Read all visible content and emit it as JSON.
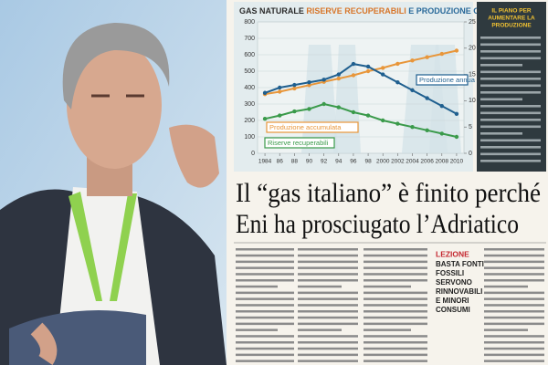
{
  "chart_data": {
    "type": "line",
    "title_parts": [
      "GAS NATURALE",
      "RISERVE RECUPERABILI",
      "E PRODUZIONE CUMULATA"
    ],
    "x": [
      1984,
      1986,
      1988,
      1990,
      1992,
      1994,
      1996,
      1998,
      2000,
      2002,
      2004,
      2006,
      2008,
      2010
    ],
    "xlim": [
      1983,
      2011
    ],
    "xticks": [
      1984,
      {
        "value": 1986,
        "label": "86"
      },
      {
        "value": 1988,
        "label": "88"
      },
      {
        "value": 1990,
        "label": "90"
      },
      {
        "value": 1992,
        "label": "92"
      },
      {
        "value": 1994,
        "label": "94"
      },
      {
        "value": 1996,
        "label": "96"
      },
      {
        "value": 1998,
        "label": "98"
      },
      2000,
      2002,
      2004,
      2006,
      2008,
      2010
    ],
    "ylim": [
      0,
      800
    ],
    "yticks": [
      0,
      100,
      200,
      300,
      400,
      500,
      600,
      700,
      800
    ],
    "y2lim": [
      0,
      25
    ],
    "y2ticks": [
      0,
      5,
      10,
      15,
      20,
      25
    ],
    "grid": true,
    "series": [
      {
        "name": "Produzione accumulata",
        "color": "#e8963a",
        "values": [
          360,
          375,
          395,
          415,
          435,
          455,
          475,
          500,
          520,
          545,
          565,
          585,
          605,
          625
        ]
      },
      {
        "name": "Produzione annua",
        "color": "#1f5f8f",
        "axis": "y2",
        "values": [
          11.5,
          12.5,
          13,
          13.5,
          14,
          15,
          17,
          16.5,
          15,
          13.5,
          12,
          10.5,
          9,
          7.5
        ]
      },
      {
        "name": "Riserve recuperabili",
        "color": "#3a9a4a",
        "values": [
          210,
          230,
          255,
          270,
          300,
          280,
          250,
          230,
          200,
          180,
          160,
          140,
          120,
          100
        ]
      }
    ]
  },
  "article": {
    "headline": [
      "Il “gas italiano” è finito perché",
      "Eni ha prosciugato l’Adriatico"
    ],
    "sidebar_title": [
      "IL PIANO PER",
      "AUMENTARE LA",
      "PRODUZIONE"
    ],
    "callout": {
      "label": "LEZIONE",
      "lines": [
        "BASTA FONTI",
        "FOSSILI",
        "SERVONO",
        "RINNOVABILI",
        "E MINORI",
        "CONSUMI"
      ]
    }
  }
}
